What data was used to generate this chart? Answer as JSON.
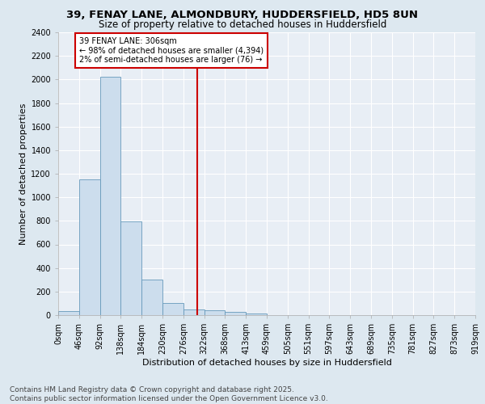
{
  "title1": "39, FENAY LANE, ALMONDBURY, HUDDERSFIELD, HD5 8UN",
  "title2": "Size of property relative to detached houses in Huddersfield",
  "xlabel": "Distribution of detached houses by size in Huddersfield",
  "ylabel": "Number of detached properties",
  "footer1": "Contains HM Land Registry data © Crown copyright and database right 2025.",
  "footer2": "Contains public sector information licensed under the Open Government Licence v3.0.",
  "bin_labels": [
    "0sqm",
    "46sqm",
    "92sqm",
    "138sqm",
    "184sqm",
    "230sqm",
    "276sqm",
    "322sqm",
    "368sqm",
    "413sqm",
    "459sqm",
    "505sqm",
    "551sqm",
    "597sqm",
    "643sqm",
    "689sqm",
    "735sqm",
    "781sqm",
    "827sqm",
    "873sqm",
    "919sqm"
  ],
  "bar_heights": [
    35,
    1150,
    2020,
    795,
    300,
    105,
    48,
    40,
    25,
    12,
    0,
    0,
    0,
    0,
    0,
    0,
    0,
    0,
    0,
    0
  ],
  "bar_color": "#ccdded",
  "bar_edge_color": "#6699bb",
  "annotation_text": "39 FENAY LANE: 306sqm\n← 98% of detached houses are smaller (4,394)\n2% of semi-detached houses are larger (76) →",
  "annotation_box_color": "#ffffff",
  "annotation_box_edge": "#cc0000",
  "line_color": "#cc0000",
  "ylim": [
    0,
    2400
  ],
  "yticks": [
    0,
    200,
    400,
    600,
    800,
    1000,
    1200,
    1400,
    1600,
    1800,
    2000,
    2200,
    2400
  ],
  "bg_color": "#dde8f0",
  "plot_bg_color": "#e8eef5",
  "grid_color": "#ffffff",
  "title1_fontsize": 9.5,
  "title2_fontsize": 8.5,
  "axis_fontsize": 8,
  "tick_fontsize": 7,
  "footer_fontsize": 6.5
}
